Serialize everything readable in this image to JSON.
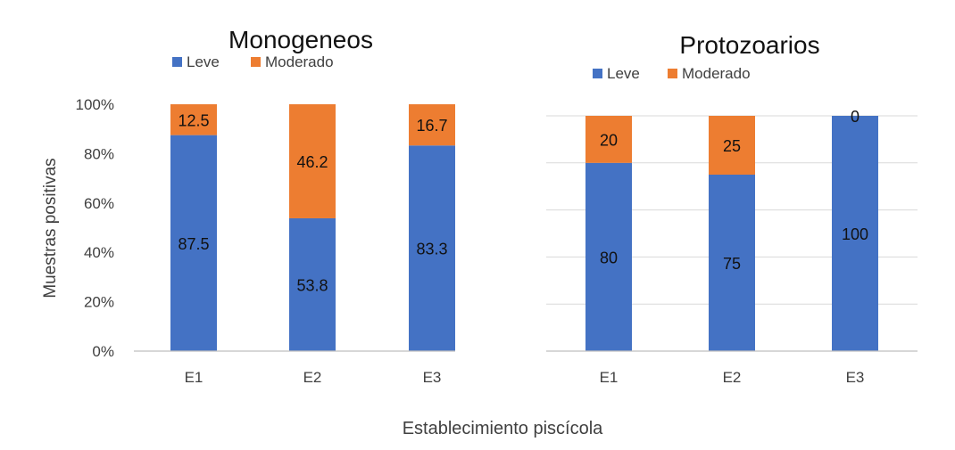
{
  "figure": {
    "y_axis_label": "Muestras positivas",
    "x_axis_label": "Establecimiento piscícola"
  },
  "chart_data": [
    {
      "type": "bar",
      "stacked": "percent",
      "title": "Monogeneos",
      "categories": [
        "E1",
        "E2",
        "E3"
      ],
      "series": [
        {
          "name": "Leve",
          "values": [
            87.5,
            53.8,
            83.3
          ],
          "color": "#4472C4"
        },
        {
          "name": "Moderado",
          "values": [
            12.5,
            46.2,
            16.7
          ],
          "color": "#ED7D31"
        }
      ],
      "ylim": [
        0,
        100
      ],
      "yticks": [
        "0%",
        "20%",
        "40%",
        "60%",
        "80%",
        "100%"
      ],
      "ylabel": "Muestras positivas",
      "xlabel": "Establecimiento piscícola",
      "legend": "top-center",
      "grid": false
    },
    {
      "type": "bar",
      "stacked": "percent",
      "title": "Protozoarios",
      "categories": [
        "E1",
        "E2",
        "E3"
      ],
      "series": [
        {
          "name": "Leve",
          "values": [
            80,
            75,
            100
          ],
          "color": "#4472C4"
        },
        {
          "name": "Moderado",
          "values": [
            20,
            25,
            0
          ],
          "color": "#ED7D31"
        }
      ],
      "ylim": [
        0,
        100
      ],
      "yticks": [],
      "legend": "top-center",
      "grid": true
    }
  ]
}
